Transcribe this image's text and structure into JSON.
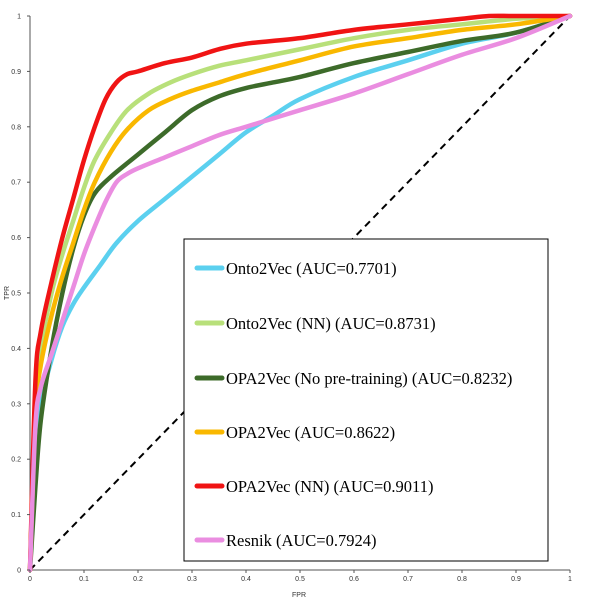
{
  "chart_data": {
    "type": "line",
    "title": "",
    "xlabel": "FPR",
    "ylabel": "TPR",
    "xlim": [
      0,
      1
    ],
    "ylim": [
      0,
      1
    ],
    "grid": false,
    "legend_position": "bottom-right",
    "x_ticks": [
      "0",
      "0.1",
      "0.2",
      "0.3",
      "0.4",
      "0.5",
      "0.6",
      "0.7",
      "0.8",
      "0.9",
      "1"
    ],
    "y_ticks": [
      "0",
      "0.1",
      "0.2",
      "0.3",
      "0.4",
      "0.5",
      "0.6",
      "0.7",
      "0.8",
      "0.9",
      "1"
    ],
    "diagonal": {
      "x": [
        0,
        1
      ],
      "y": [
        0,
        1
      ],
      "color": "#000000",
      "style": "dashed"
    },
    "series": [
      {
        "name": "Onto2Vec (AUC=0.7701)",
        "color": "#5bd0ef",
        "x": [
          0,
          0.01,
          0.02,
          0.04,
          0.06,
          0.08,
          0.1,
          0.13,
          0.16,
          0.2,
          0.25,
          0.3,
          0.35,
          0.4,
          0.45,
          0.5,
          0.6,
          0.7,
          0.8,
          0.9,
          1.0
        ],
        "y": [
          0,
          0.2,
          0.3,
          0.38,
          0.44,
          0.48,
          0.51,
          0.55,
          0.59,
          0.63,
          0.67,
          0.71,
          0.75,
          0.79,
          0.82,
          0.85,
          0.89,
          0.92,
          0.95,
          0.97,
          1.0
        ]
      },
      {
        "name": "Onto2Vec (NN) (AUC=0.8731)",
        "color": "#b8e07a",
        "x": [
          0,
          0.01,
          0.02,
          0.04,
          0.06,
          0.08,
          0.1,
          0.12,
          0.15,
          0.18,
          0.22,
          0.26,
          0.3,
          0.35,
          0.4,
          0.5,
          0.6,
          0.7,
          0.8,
          0.9,
          1.0
        ],
        "y": [
          0,
          0.3,
          0.4,
          0.5,
          0.57,
          0.63,
          0.69,
          0.74,
          0.79,
          0.83,
          0.86,
          0.88,
          0.895,
          0.91,
          0.92,
          0.94,
          0.96,
          0.975,
          0.985,
          0.995,
          1.0
        ]
      },
      {
        "name": "OPA2Vec (No pre-training) (AUC=0.8232)",
        "color": "#3d6b2a",
        "x": [
          0,
          0.01,
          0.02,
          0.04,
          0.06,
          0.08,
          0.1,
          0.12,
          0.15,
          0.2,
          0.25,
          0.3,
          0.35,
          0.4,
          0.45,
          0.5,
          0.6,
          0.7,
          0.8,
          0.9,
          1.0
        ],
        "y": [
          0,
          0.15,
          0.27,
          0.4,
          0.5,
          0.58,
          0.64,
          0.68,
          0.71,
          0.75,
          0.79,
          0.83,
          0.855,
          0.87,
          0.88,
          0.89,
          0.915,
          0.935,
          0.955,
          0.97,
          1.0
        ]
      },
      {
        "name": "OPA2Vec (AUC=0.8622)",
        "color": "#f9b800",
        "x": [
          0,
          0.01,
          0.02,
          0.04,
          0.06,
          0.08,
          0.1,
          0.12,
          0.15,
          0.18,
          0.22,
          0.26,
          0.3,
          0.35,
          0.4,
          0.5,
          0.6,
          0.7,
          0.8,
          0.9,
          1.0
        ],
        "y": [
          0,
          0.28,
          0.37,
          0.46,
          0.53,
          0.59,
          0.65,
          0.7,
          0.755,
          0.795,
          0.83,
          0.85,
          0.865,
          0.88,
          0.895,
          0.92,
          0.945,
          0.96,
          0.975,
          0.985,
          1.0
        ]
      },
      {
        "name": "OPA2Vec (NN) (AUC=0.9011)",
        "color": "#f01414",
        "x": [
          0,
          0.01,
          0.02,
          0.04,
          0.06,
          0.08,
          0.1,
          0.12,
          0.14,
          0.16,
          0.18,
          0.2,
          0.25,
          0.3,
          0.35,
          0.4,
          0.5,
          0.6,
          0.7,
          0.8,
          0.85,
          0.9,
          1.0
        ],
        "y": [
          0,
          0.34,
          0.43,
          0.52,
          0.6,
          0.67,
          0.74,
          0.8,
          0.85,
          0.88,
          0.895,
          0.9,
          0.915,
          0.925,
          0.94,
          0.95,
          0.96,
          0.975,
          0.985,
          0.995,
          1.0,
          1.0,
          1.0
        ]
      },
      {
        "name": "Resnik (AUC=0.7924)",
        "color": "#ea8de0",
        "x": [
          0,
          0.01,
          0.02,
          0.04,
          0.06,
          0.08,
          0.1,
          0.12,
          0.14,
          0.16,
          0.18,
          0.2,
          0.25,
          0.3,
          0.35,
          0.4,
          0.45,
          0.5,
          0.6,
          0.7,
          0.8,
          0.9,
          1.0
        ],
        "y": [
          0,
          0.26,
          0.33,
          0.39,
          0.45,
          0.51,
          0.57,
          0.62,
          0.665,
          0.7,
          0.715,
          0.725,
          0.745,
          0.765,
          0.785,
          0.8,
          0.815,
          0.83,
          0.86,
          0.895,
          0.93,
          0.96,
          1.0
        ]
      }
    ]
  }
}
